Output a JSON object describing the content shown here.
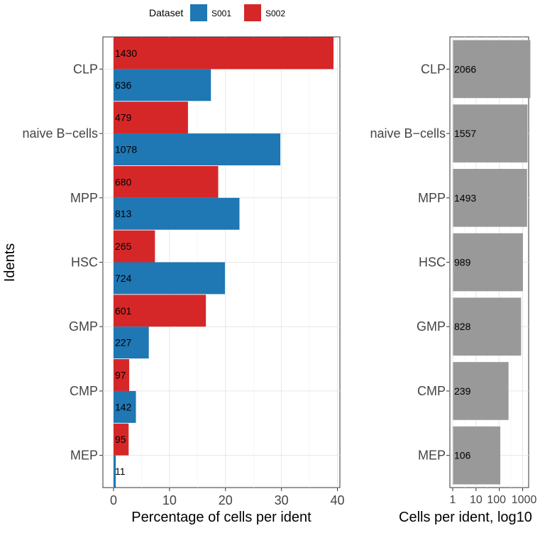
{
  "legend": {
    "title": "Dataset",
    "entries": [
      {
        "label": "S001",
        "color": "#1f77b4"
      },
      {
        "label": "S002",
        "color": "#d62728"
      }
    ]
  },
  "chart_data": [
    {
      "type": "bar",
      "orientation": "horizontal",
      "categories": [
        "CLP",
        "naive B−cells",
        "MPP",
        "HSC",
        "GMP",
        "CMP",
        "MEP"
      ],
      "ylabel": "Idents",
      "xlabel": "Percentage of cells per ident",
      "xlim": [
        0,
        40
      ],
      "xticks": [
        "0",
        "10",
        "20",
        "30",
        "40"
      ],
      "xtick_values": [
        0,
        10,
        20,
        30,
        40
      ],
      "grid": true,
      "legend_position": "top",
      "series": [
        {
          "name": "S001",
          "color": "#1f77b4",
          "values": [
            17.4,
            29.8,
            22.5,
            19.9,
            6.3,
            4.0,
            0.4
          ],
          "labels": [
            "636",
            "1078",
            "813",
            "724",
            "227",
            "142",
            "11"
          ]
        },
        {
          "name": "S002",
          "color": "#d62728",
          "values": [
            39.3,
            13.3,
            18.7,
            7.4,
            16.5,
            2.8,
            2.7
          ],
          "labels": [
            "1430",
            "479",
            "680",
            "265",
            "601",
            "97",
            "95"
          ]
        }
      ]
    },
    {
      "type": "bar",
      "orientation": "horizontal",
      "categories": [
        "CLP",
        "naive B−cells",
        "MPP",
        "HSC",
        "GMP",
        "CMP",
        "MEP"
      ],
      "xlabel": "Cells per ident, log10",
      "xscale": "log10",
      "xticks": [
        "1",
        "10",
        "100",
        "1000"
      ],
      "xtick_values": [
        1,
        10,
        100,
        1000
      ],
      "grid": true,
      "color": "#999999",
      "values": [
        2066,
        1557,
        1493,
        989,
        828,
        239,
        106
      ],
      "labels": [
        "2066",
        "1557",
        "1493",
        "989",
        "828",
        "239",
        "106"
      ]
    }
  ]
}
